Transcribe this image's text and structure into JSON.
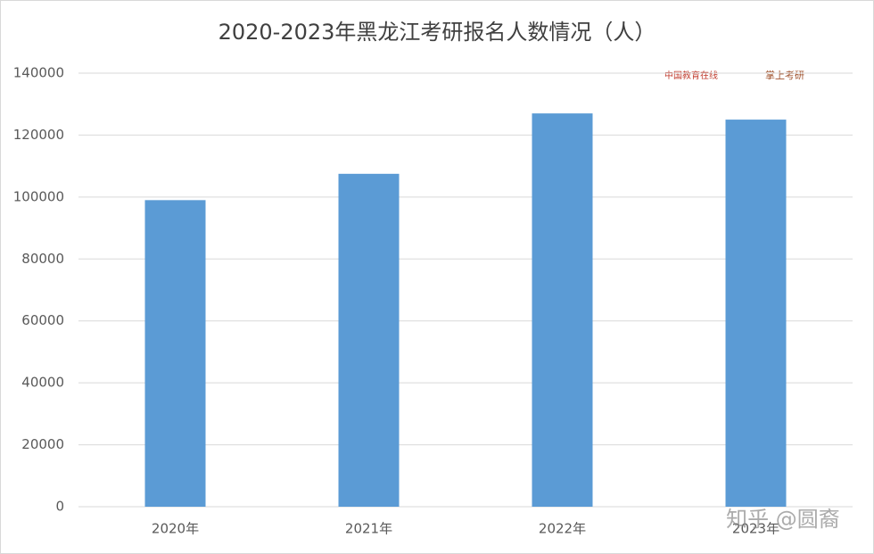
{
  "chart_data": {
    "type": "bar",
    "title": "2020-2023年黑龙江考研报名人数情况（人）",
    "categories": [
      "2020年",
      "2021年",
      "2022年",
      "2023年"
    ],
    "values": [
      99000,
      107500,
      127000,
      125000
    ],
    "color": "#5b9bd5",
    "ylim": [
      0,
      140000
    ],
    "yticks": [
      0,
      20000,
      40000,
      60000,
      80000,
      100000,
      120000,
      140000
    ],
    "grid": true,
    "logos": [
      "中国教育在线",
      "掌上考研"
    ],
    "watermark": "知乎 @圆裔"
  }
}
